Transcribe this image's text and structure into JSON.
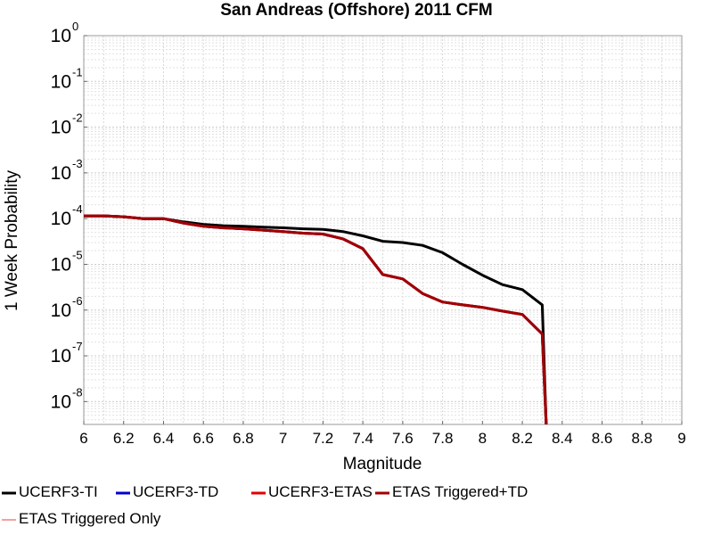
{
  "chart_data": {
    "type": "line",
    "title": "San Andreas (Offshore) 2011 CFM",
    "xlabel": "Magnitude",
    "ylabel": "1 Week Probability",
    "xlim": [
      6,
      9
    ],
    "ylim_exponent": [
      -8.5,
      0
    ],
    "y_scale": "log",
    "grid": true,
    "legend_placement": "bottom",
    "x_ticks": [
      "6",
      "6.2",
      "6.4",
      "6.6",
      "6.8",
      "7",
      "7.2",
      "7.4",
      "7.6",
      "7.8",
      "8",
      "8.2",
      "8.4",
      "8.6",
      "8.8",
      "9"
    ],
    "y_ticks": [
      {
        "base": "10",
        "exp": "0",
        "value": 1
      },
      {
        "base": "10",
        "exp": "-1",
        "value": 0.1
      },
      {
        "base": "10",
        "exp": "-2",
        "value": 0.01
      },
      {
        "base": "10",
        "exp": "-3",
        "value": 0.001
      },
      {
        "base": "10",
        "exp": "-4",
        "value": 0.0001
      },
      {
        "base": "10",
        "exp": "-5",
        "value": 1e-05
      },
      {
        "base": "10",
        "exp": "-6",
        "value": 1e-06
      },
      {
        "base": "10",
        "exp": "-7",
        "value": 1e-07
      },
      {
        "base": "10",
        "exp": "-8",
        "value": 1e-08
      }
    ],
    "series": [
      {
        "name": "UCERF3-TI",
        "color": "#000000",
        "x": [
          6.0,
          6.1,
          6.2,
          6.3,
          6.4,
          6.5,
          6.6,
          6.7,
          6.8,
          6.9,
          7.0,
          7.1,
          7.2,
          7.3,
          7.4,
          7.5,
          7.6,
          7.7,
          7.8,
          7.9,
          8.0,
          8.1,
          8.2,
          8.3,
          8.32
        ],
        "y": [
          0.000115,
          0.000115,
          0.00011,
          0.0001,
          0.0001,
          8.5e-05,
          7.5e-05,
          7e-05,
          6.8e-05,
          6.5e-05,
          6.3e-05,
          6e-05,
          5.8e-05,
          5.2e-05,
          4.2e-05,
          3.2e-05,
          3e-05,
          2.6e-05,
          1.8e-05,
          1e-05,
          5.8e-06,
          3.6e-06,
          2.8e-06,
          1.3e-06,
          3e-09
        ]
      },
      {
        "name": "UCERF3-TD",
        "color": "#0000cc",
        "x": [
          6.0,
          6.1,
          6.2,
          6.3,
          6.4,
          6.5,
          6.6,
          6.7,
          6.8,
          6.9,
          7.0,
          7.1,
          7.2,
          7.3,
          7.4,
          7.5,
          7.6,
          7.7,
          7.8,
          7.9,
          8.0,
          8.1,
          8.2,
          8.3,
          8.32
        ],
        "y": [
          0.000115,
          0.000115,
          0.00011,
          0.0001,
          0.0001,
          8e-05,
          6.8e-05,
          6.3e-05,
          6e-05,
          5.6e-05,
          5.2e-05,
          4.8e-05,
          4.6e-05,
          3.6e-05,
          2.2e-05,
          6e-06,
          4.8e-06,
          2.3e-06,
          1.5e-06,
          1.3e-06,
          1.15e-06,
          9.5e-07,
          8e-07,
          3e-07,
          3e-09
        ]
      },
      {
        "name": "UCERF3-ETAS",
        "color": "#e00000",
        "x": [
          6.0,
          6.1,
          6.2,
          6.3,
          6.4,
          6.5,
          6.6,
          6.7,
          6.8,
          6.9,
          7.0,
          7.1,
          7.2,
          7.3,
          7.4,
          7.5,
          7.6,
          7.7,
          7.8,
          7.9,
          8.0,
          8.1,
          8.2,
          8.3,
          8.32
        ],
        "y": [
          0.000115,
          0.000115,
          0.00011,
          0.0001,
          0.0001,
          8e-05,
          6.8e-05,
          6.3e-05,
          6e-05,
          5.6e-05,
          5.2e-05,
          4.8e-05,
          4.6e-05,
          3.6e-05,
          2.2e-05,
          6e-06,
          4.8e-06,
          2.3e-06,
          1.5e-06,
          1.3e-06,
          1.15e-06,
          9.5e-07,
          8e-07,
          3e-07,
          3e-09
        ]
      },
      {
        "name": "ETAS Triggered+TD",
        "color": "#a00000",
        "x": [
          6.0,
          6.1,
          6.2,
          6.3,
          6.4,
          6.5,
          6.6,
          6.7,
          6.8,
          6.9,
          7.0,
          7.1,
          7.2,
          7.3,
          7.4,
          7.5,
          7.6,
          7.7,
          7.8,
          7.9,
          8.0,
          8.1,
          8.2,
          8.3,
          8.32
        ],
        "y": [
          0.000115,
          0.000115,
          0.00011,
          0.0001,
          0.0001,
          8e-05,
          6.8e-05,
          6.3e-05,
          6e-05,
          5.6e-05,
          5.2e-05,
          4.8e-05,
          4.6e-05,
          3.6e-05,
          2.2e-05,
          6e-06,
          4.8e-06,
          2.3e-06,
          1.5e-06,
          1.3e-06,
          1.15e-06,
          9.5e-07,
          8e-07,
          3e-07,
          3e-09
        ]
      },
      {
        "name": "ETAS Triggered Only",
        "color": "#f08080",
        "x": [],
        "y": []
      }
    ]
  }
}
